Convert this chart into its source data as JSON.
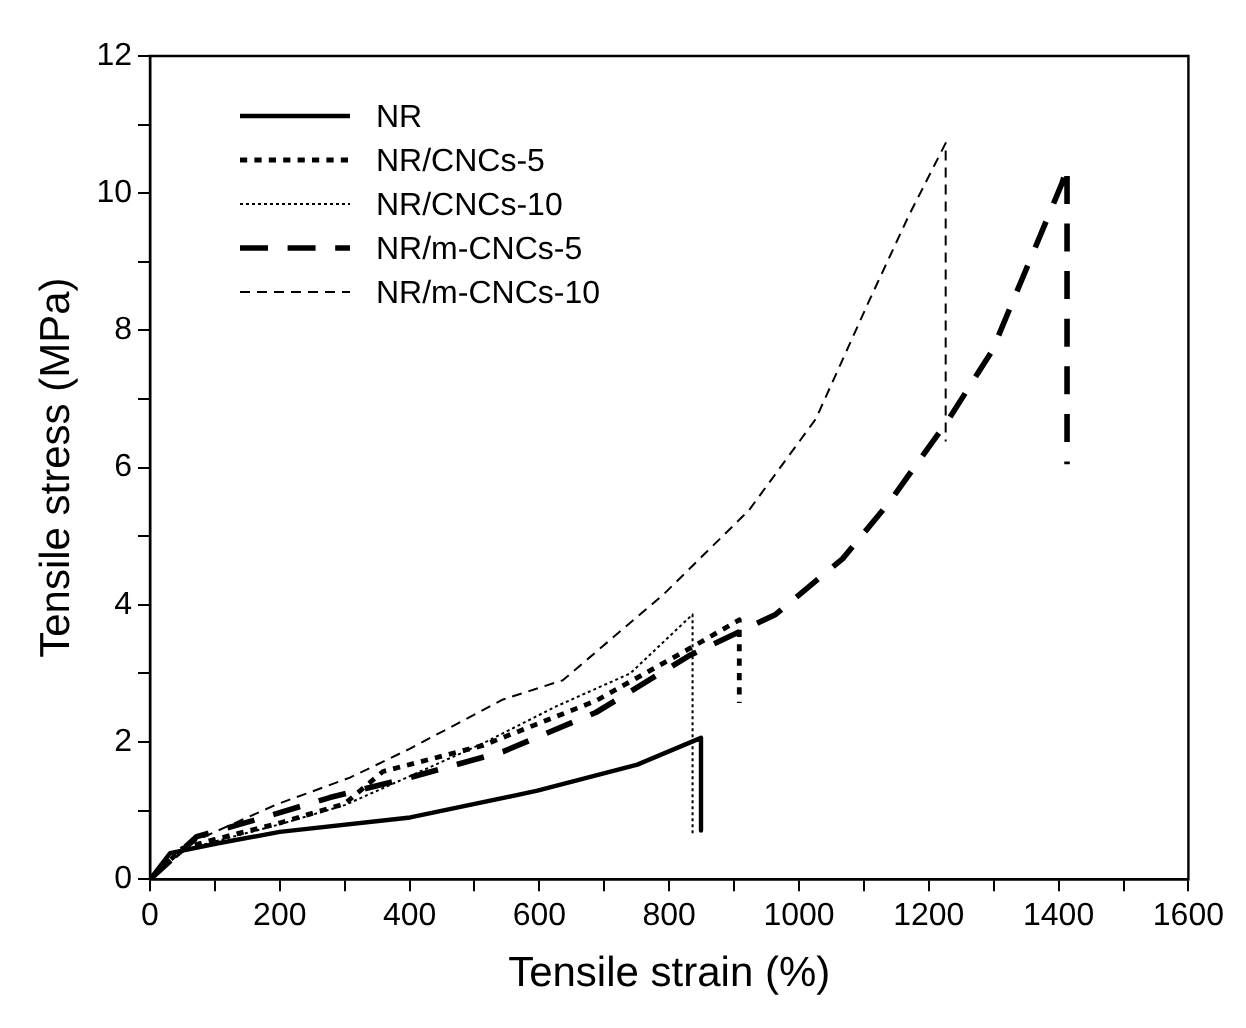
{
  "chart_data": {
    "type": "line",
    "xlabel": "Tensile strain (%)",
    "ylabel": "Tensile stress (MPa)",
    "xlim": [
      0,
      1600
    ],
    "ylim": [
      0,
      12
    ],
    "xticks": [
      0,
      {
        "value": 100,
        "label": null
      },
      200,
      {
        "value": 300,
        "label": null
      },
      400,
      {
        "value": 500,
        "label": null
      },
      600,
      {
        "value": 700,
        "label": null
      },
      800,
      {
        "value": 900,
        "label": null
      },
      1000,
      {
        "value": 1100,
        "label": null
      },
      1200,
      {
        "value": 1300,
        "label": null
      },
      1400,
      {
        "value": 1500,
        "label": null
      },
      1600
    ],
    "yticks": [
      0,
      {
        "value": 1,
        "label": null
      },
      2,
      {
        "value": 3,
        "label": null
      },
      4,
      {
        "value": 5,
        "label": null
      },
      6,
      {
        "value": 7,
        "label": null
      },
      8,
      {
        "value": 9,
        "label": null
      },
      10,
      {
        "value": 11,
        "label": null
      },
      12
    ],
    "grid": false,
    "legend": "top left",
    "marker": "none",
    "series": [
      {
        "name": "NR",
        "color": "#000000",
        "line_style": "solid",
        "x": [
          0,
          31,
          103,
          200,
          401,
          597,
          751,
          849,
          849
        ],
        "values": [
          0,
          0.38,
          0.52,
          0.69,
          0.9,
          1.29,
          1.67,
          2.06,
          0.71
        ]
      },
      {
        "name": "NR/CNCs-5",
        "color": "#000000",
        "line_style": "dotted",
        "x": [
          0,
          50,
          100,
          200,
          300,
          359,
          513,
          687,
          831,
          908,
          908
        ],
        "values": [
          0,
          0.45,
          0.58,
          0.82,
          1.1,
          1.57,
          1.95,
          2.6,
          3.36,
          3.78,
          2.57
        ]
      },
      {
        "name": "NR/CNCs-10",
        "color": "#000000",
        "line_style": "dotted",
        "x": [
          0,
          50,
          100,
          200,
          300,
          400,
          513,
          626,
          740,
          836,
          836
        ],
        "values": [
          0,
          0.42,
          0.55,
          0.8,
          1.08,
          1.5,
          1.98,
          2.52,
          3.0,
          3.86,
          0.63
        ]
      },
      {
        "name": "NR/m-CNCs-5",
        "color": "#000000",
        "line_style": "dashed",
        "x": [
          0,
          72,
          175,
          277,
          400,
          544,
          687,
          831,
          964,
          1067,
          1138,
          1231,
          1298,
          1405,
          1413,
          1413
        ],
        "values": [
          0,
          0.62,
          0.9,
          1.19,
          1.48,
          1.86,
          2.43,
          3.26,
          3.86,
          4.67,
          5.48,
          6.71,
          7.71,
          10.14,
          10.38,
          6.05
        ]
      },
      {
        "name": "NR/m-CNCs-10",
        "color": "#000000",
        "line_style": "dashed",
        "x": [
          0,
          72,
          195,
          308,
          400,
          544,
          636,
          790,
          923,
          1026,
          1108,
          1169,
          1226,
          1226
        ],
        "values": [
          0,
          0.57,
          1.09,
          1.48,
          1.9,
          2.62,
          2.9,
          4.14,
          5.38,
          6.71,
          8.43,
          9.67,
          10.73,
          6.38
        ]
      }
    ]
  }
}
